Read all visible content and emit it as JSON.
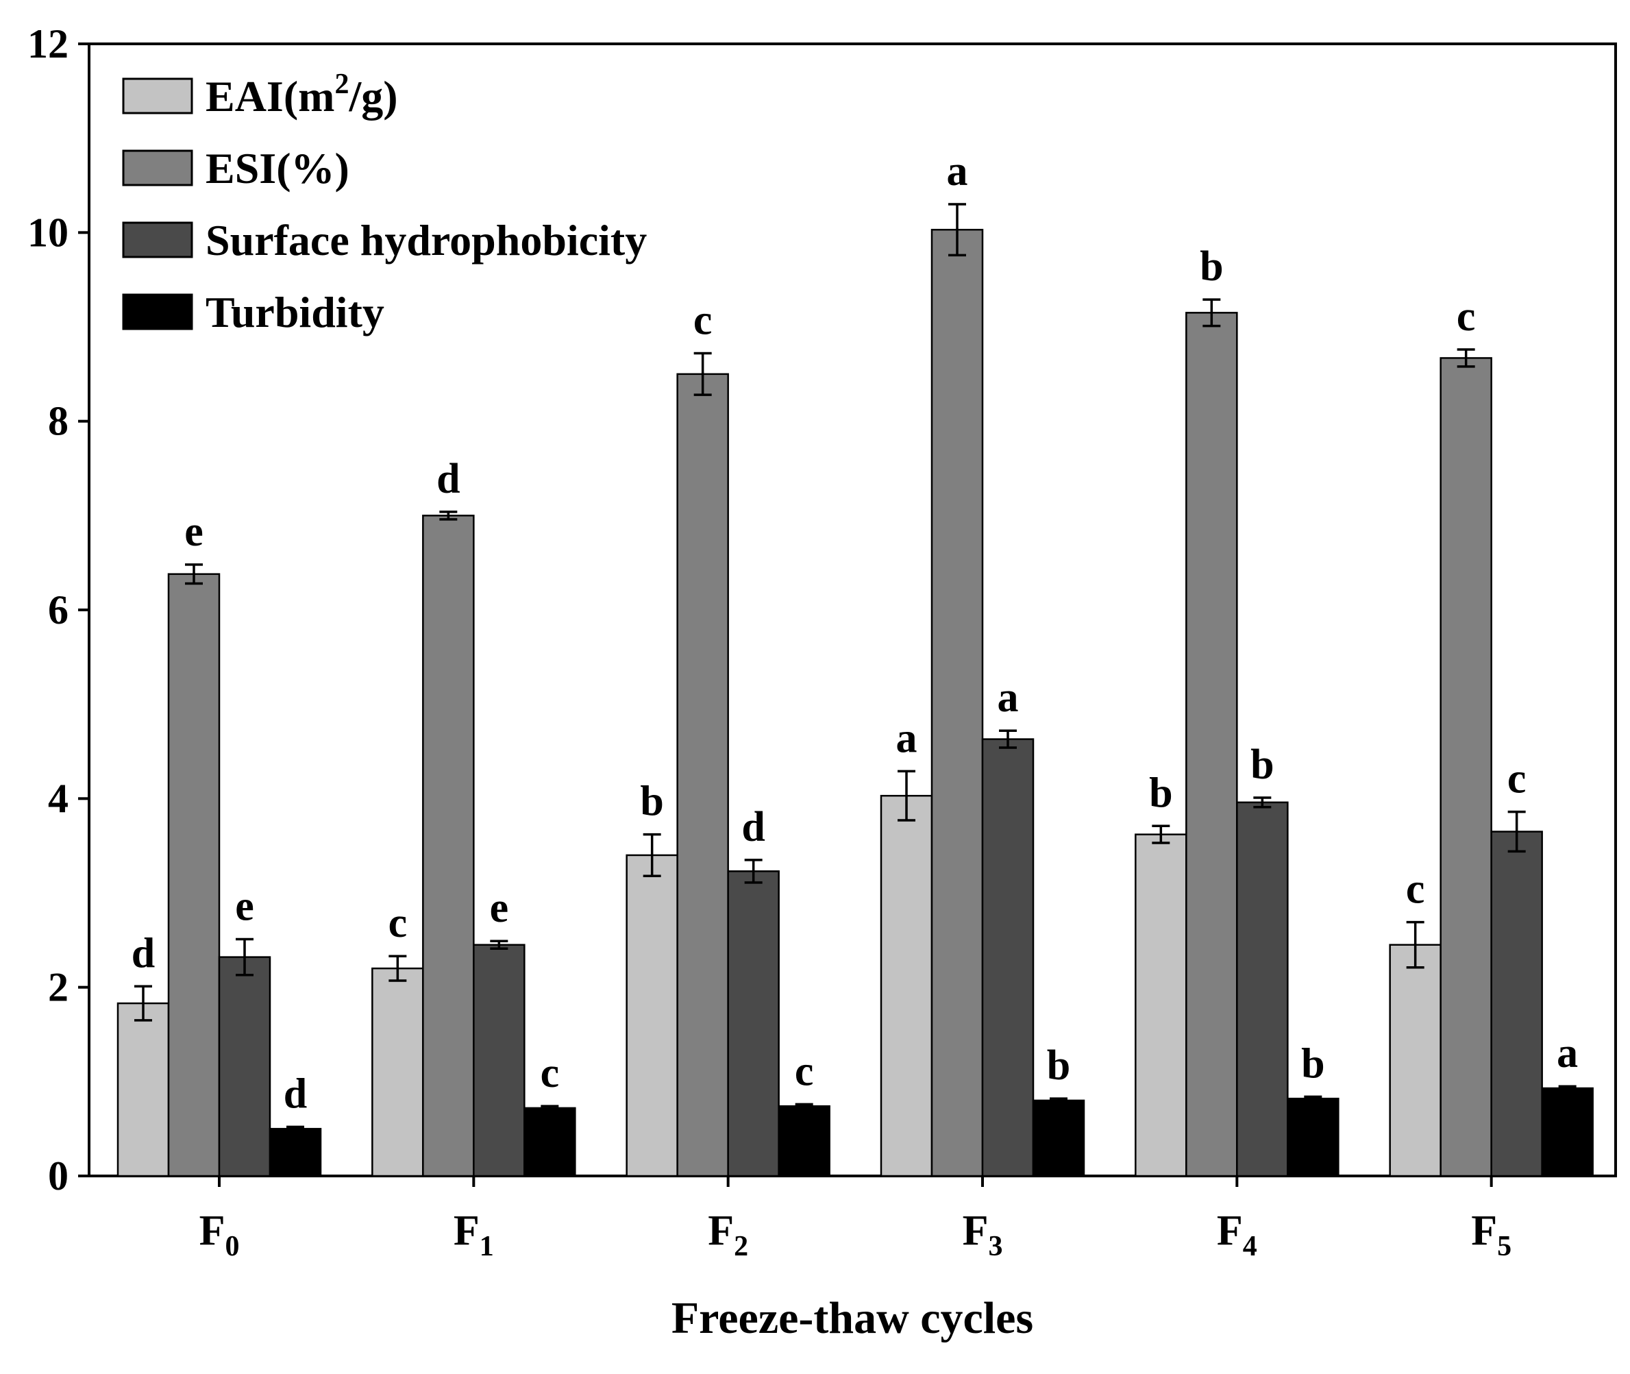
{
  "chart_data": {
    "type": "bar",
    "title": "",
    "xlabel": "Freeze-thaw cycles",
    "ylabel": "",
    "ylim": [
      0,
      12
    ],
    "yticks": [
      0,
      2,
      4,
      6,
      8,
      10,
      12
    ],
    "grid": false,
    "legend_position": "top-left",
    "categories": [
      {
        "base": "F",
        "sub": "0"
      },
      {
        "base": "F",
        "sub": "1"
      },
      {
        "base": "F",
        "sub": "2"
      },
      {
        "base": "F",
        "sub": "3"
      },
      {
        "base": "F",
        "sub": "4"
      },
      {
        "base": "F",
        "sub": "5"
      }
    ],
    "series": [
      {
        "name": "EAI(m²/g)",
        "legend": {
          "main": "EAI(m",
          "sup": "2",
          "tail": "/g)"
        },
        "color": "#c3c3c3",
        "values": [
          1.83,
          2.2,
          3.4,
          4.03,
          3.62,
          2.45
        ],
        "errors": [
          0.18,
          0.13,
          0.22,
          0.26,
          0.09,
          0.24
        ],
        "letters": [
          "d",
          "c",
          "b",
          "a",
          "b",
          "c"
        ]
      },
      {
        "name": "ESI(%)",
        "legend": {
          "main": "ESI(%)",
          "sup": "",
          "tail": ""
        },
        "color": "#808080",
        "values": [
          6.38,
          7.0,
          8.5,
          10.03,
          9.15,
          8.67
        ],
        "errors": [
          0.1,
          0.04,
          0.22,
          0.27,
          0.14,
          0.09
        ],
        "letters": [
          "e",
          "d",
          "c",
          "a",
          "b",
          "c"
        ]
      },
      {
        "name": "Surface hydrophobicity",
        "legend": {
          "main": "Surface hydrophobicity",
          "sup": "",
          "tail": ""
        },
        "color": "#4a4a4a",
        "values": [
          2.32,
          2.45,
          3.23,
          4.63,
          3.96,
          3.65
        ],
        "errors": [
          0.19,
          0.04,
          0.12,
          0.09,
          0.05,
          0.21
        ],
        "letters": [
          "e",
          "e",
          "d",
          "a",
          "b",
          "c"
        ]
      },
      {
        "name": "Turbidity",
        "legend": {
          "main": "Turbidity",
          "sup": "",
          "tail": ""
        },
        "color": "#000000",
        "values": [
          0.5,
          0.72,
          0.74,
          0.8,
          0.82,
          0.93
        ],
        "errors": [
          0.02,
          0.02,
          0.02,
          0.02,
          0.02,
          0.02
        ],
        "letters": [
          "d",
          "c",
          "c",
          "b",
          "b",
          "a"
        ]
      }
    ]
  }
}
